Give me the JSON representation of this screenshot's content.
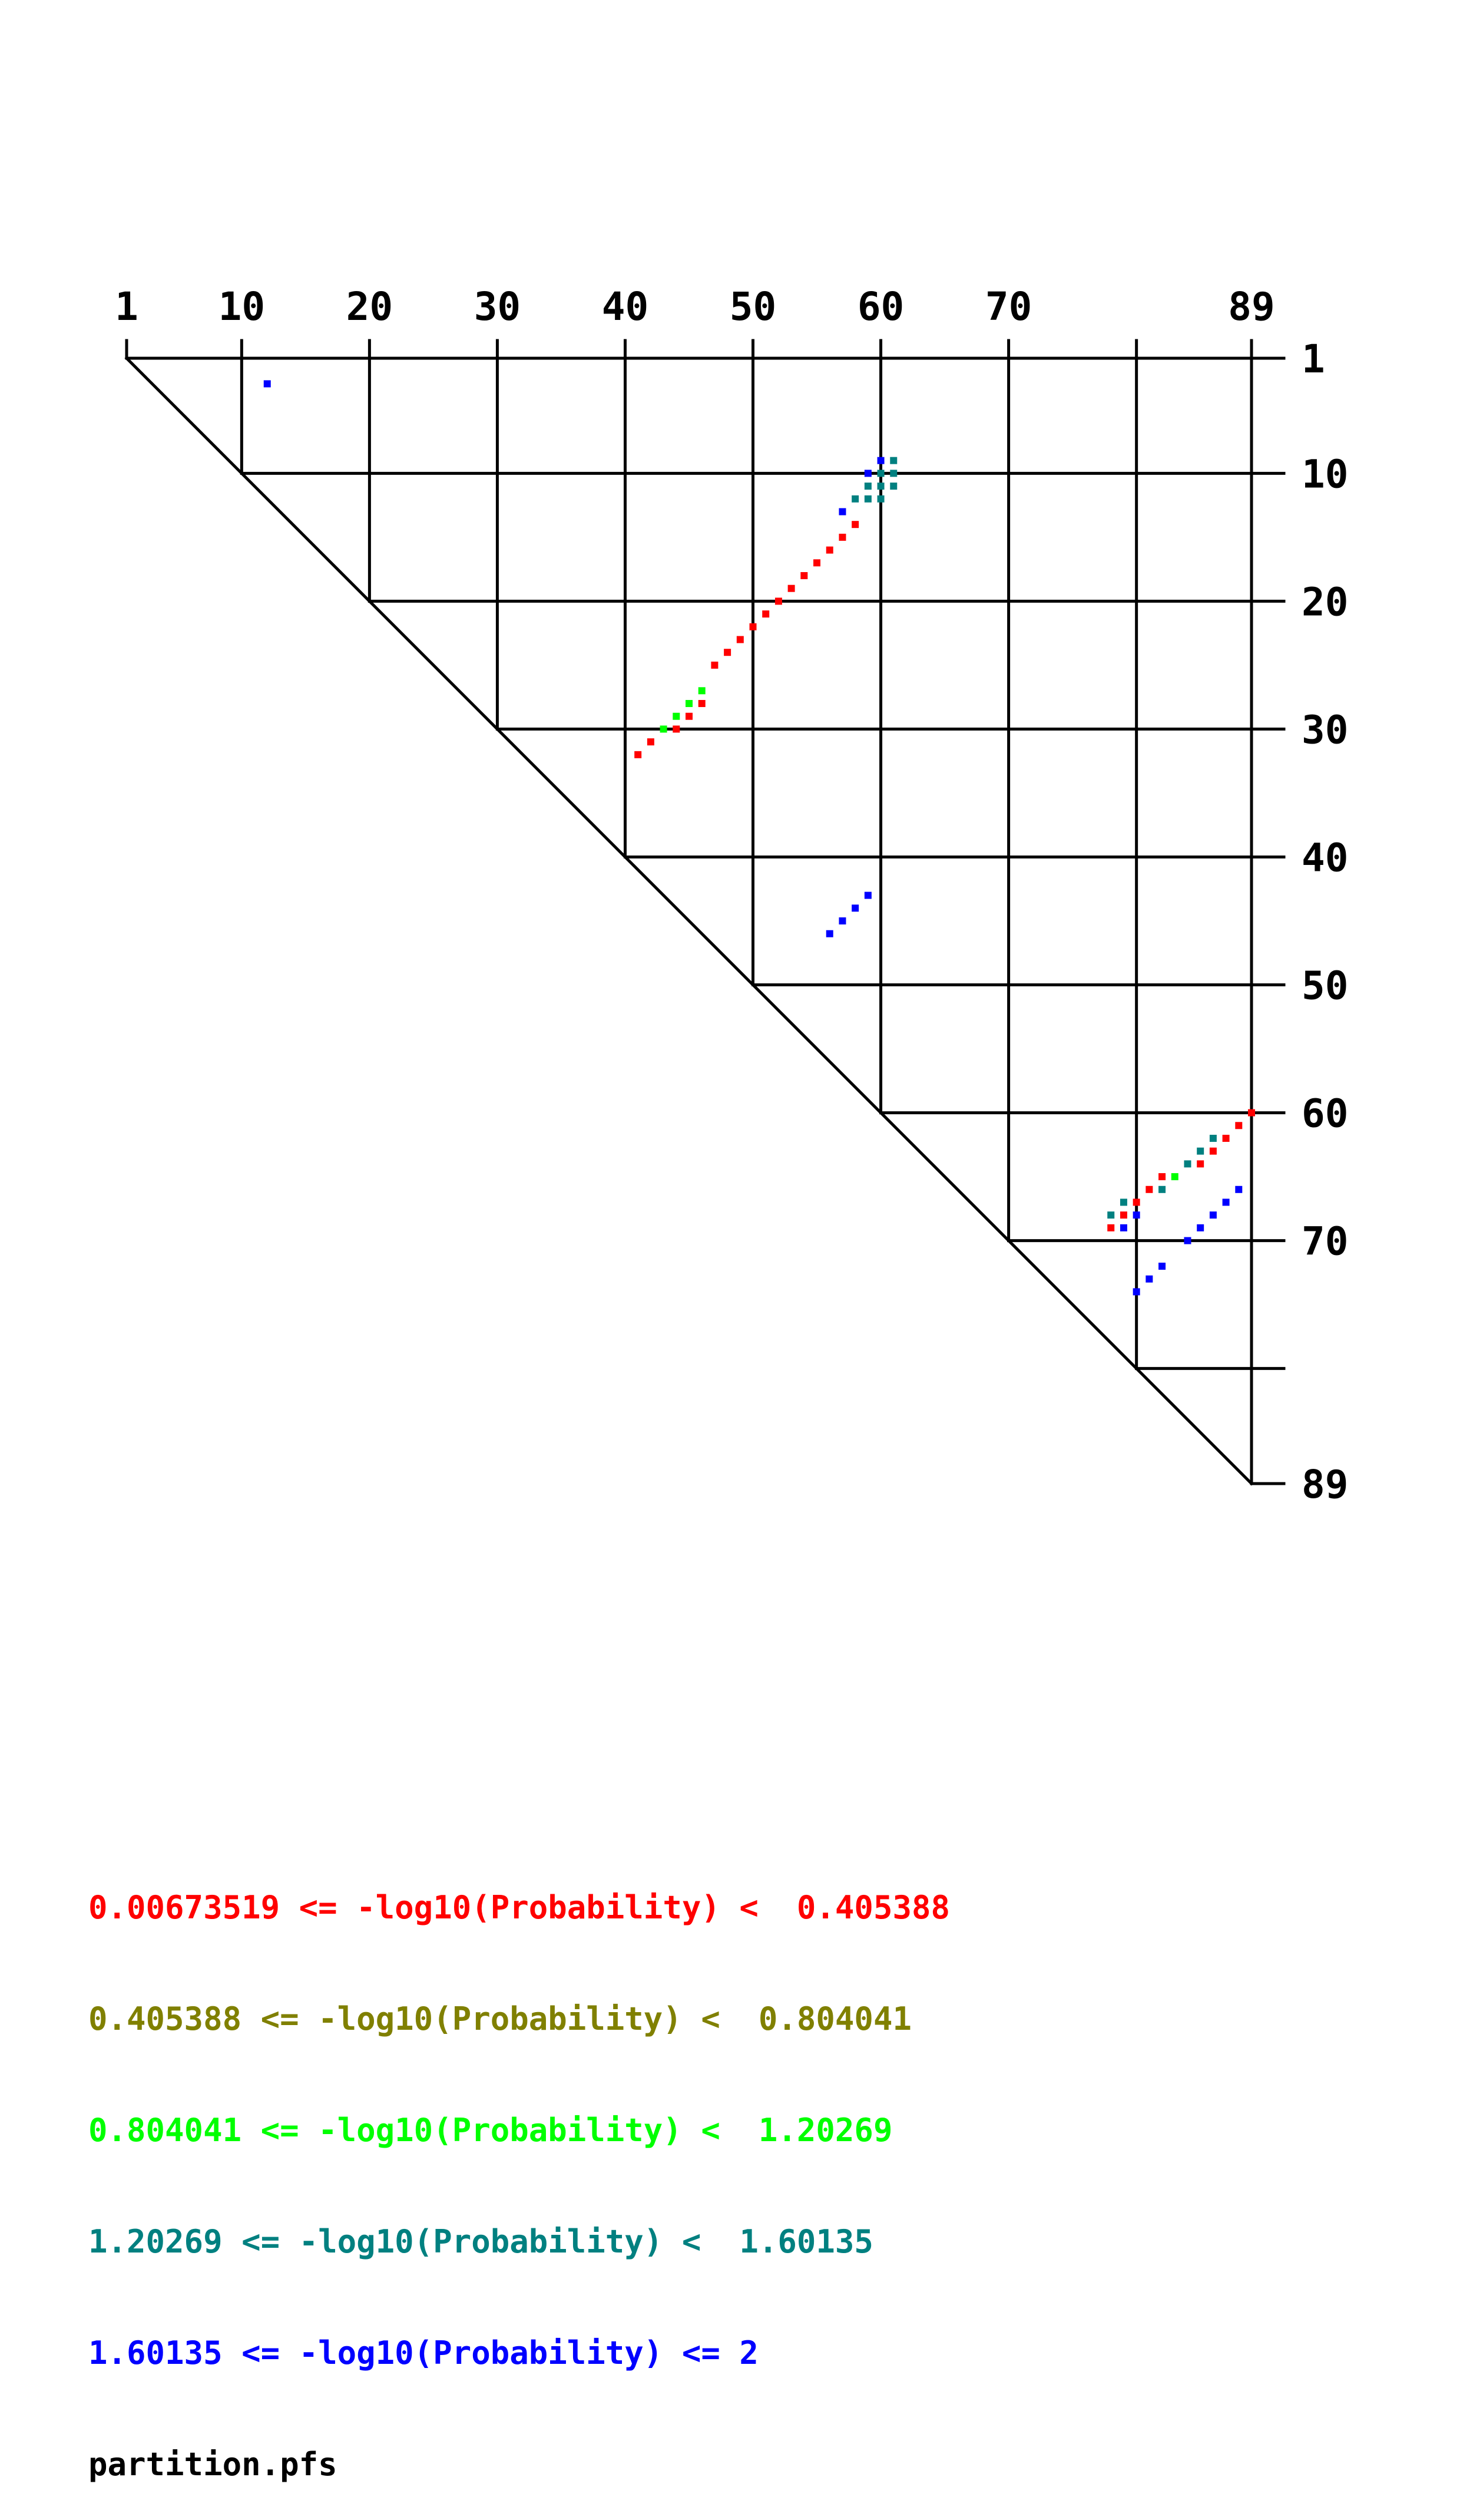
{
  "chart_data": {
    "type": "heatmap",
    "title": "",
    "n": 89,
    "top_tick_labels": [
      "1",
      "10",
      "20",
      "30",
      "40",
      "50",
      "60",
      "70",
      "89"
    ],
    "right_tick_labels": [
      "1",
      "10",
      "20",
      "30",
      "40",
      "50",
      "60",
      "70",
      "89"
    ],
    "grid_positions": [
      1,
      10,
      20,
      30,
      40,
      50,
      60,
      70,
      80,
      89
    ],
    "legend": [
      {
        "text": "0.00673519 <= -log10(Probability) <  0.405388",
        "color": "#ff0000"
      },
      {
        "text": "0.405388 <= -log10(Probability) <  0.804041",
        "color": "#808000"
      },
      {
        "text": "0.804041 <= -log10(Probability) <  1.20269",
        "color": "#00ff00"
      },
      {
        "text": "1.20269 <= -log10(Probability) <  1.60135",
        "color": "#008080"
      },
      {
        "text": "1.60135 <= -log10(Probability) <= 2",
        "color": "#0000ff"
      }
    ],
    "filename": "partition.pfs",
    "bin_colors": [
      "#ff0000",
      "#808000",
      "#00ff00",
      "#008080",
      "#0000ff"
    ],
    "points": [
      {
        "i": 3,
        "j": 12,
        "bin": 4
      },
      {
        "i": 9,
        "j": 60,
        "bin": 4
      },
      {
        "i": 9,
        "j": 61,
        "bin": 3
      },
      {
        "i": 10,
        "j": 59,
        "bin": 4
      },
      {
        "i": 10,
        "j": 60,
        "bin": 3
      },
      {
        "i": 10,
        "j": 61,
        "bin": 3
      },
      {
        "i": 11,
        "j": 59,
        "bin": 3
      },
      {
        "i": 11,
        "j": 60,
        "bin": 3
      },
      {
        "i": 11,
        "j": 61,
        "bin": 3
      },
      {
        "i": 12,
        "j": 58,
        "bin": 3
      },
      {
        "i": 12,
        "j": 59,
        "bin": 3
      },
      {
        "i": 12,
        "j": 60,
        "bin": 3
      },
      {
        "i": 13,
        "j": 57,
        "bin": 4
      },
      {
        "i": 14,
        "j": 58,
        "bin": 0
      },
      {
        "i": 15,
        "j": 57,
        "bin": 0
      },
      {
        "i": 16,
        "j": 56,
        "bin": 0
      },
      {
        "i": 17,
        "j": 55,
        "bin": 0
      },
      {
        "i": 18,
        "j": 54,
        "bin": 0
      },
      {
        "i": 19,
        "j": 53,
        "bin": 0
      },
      {
        "i": 20,
        "j": 52,
        "bin": 0
      },
      {
        "i": 21,
        "j": 51,
        "bin": 0
      },
      {
        "i": 22,
        "j": 50,
        "bin": 0
      },
      {
        "i": 23,
        "j": 49,
        "bin": 0
      },
      {
        "i": 24,
        "j": 48,
        "bin": 0
      },
      {
        "i": 25,
        "j": 47,
        "bin": 0
      },
      {
        "i": 27,
        "j": 46,
        "bin": 2
      },
      {
        "i": 28,
        "j": 45,
        "bin": 2
      },
      {
        "i": 28,
        "j": 46,
        "bin": 0
      },
      {
        "i": 29,
        "j": 44,
        "bin": 2
      },
      {
        "i": 29,
        "j": 45,
        "bin": 0
      },
      {
        "i": 30,
        "j": 43,
        "bin": 2
      },
      {
        "i": 30,
        "j": 44,
        "bin": 0
      },
      {
        "i": 31,
        "j": 42,
        "bin": 0
      },
      {
        "i": 32,
        "j": 41,
        "bin": 0
      },
      {
        "i": 43,
        "j": 59,
        "bin": 4
      },
      {
        "i": 44,
        "j": 58,
        "bin": 4
      },
      {
        "i": 45,
        "j": 57,
        "bin": 4
      },
      {
        "i": 46,
        "j": 56,
        "bin": 4
      },
      {
        "i": 60,
        "j": 89,
        "bin": 0
      },
      {
        "i": 61,
        "j": 88,
        "bin": 0
      },
      {
        "i": 62,
        "j": 86,
        "bin": 3
      },
      {
        "i": 62,
        "j": 87,
        "bin": 0
      },
      {
        "i": 63,
        "j": 85,
        "bin": 3
      },
      {
        "i": 63,
        "j": 86,
        "bin": 0
      },
      {
        "i": 64,
        "j": 84,
        "bin": 3
      },
      {
        "i": 64,
        "j": 85,
        "bin": 0
      },
      {
        "i": 65,
        "j": 82,
        "bin": 0
      },
      {
        "i": 65,
        "j": 83,
        "bin": 2
      },
      {
        "i": 66,
        "j": 81,
        "bin": 0
      },
      {
        "i": 66,
        "j": 82,
        "bin": 3
      },
      {
        "i": 67,
        "j": 79,
        "bin": 3
      },
      {
        "i": 67,
        "j": 80,
        "bin": 0
      },
      {
        "i": 68,
        "j": 78,
        "bin": 3
      },
      {
        "i": 68,
        "j": 79,
        "bin": 0
      },
      {
        "i": 68,
        "j": 80,
        "bin": 4
      },
      {
        "i": 69,
        "j": 78,
        "bin": 0
      },
      {
        "i": 69,
        "j": 79,
        "bin": 4
      },
      {
        "i": 66,
        "j": 88,
        "bin": 4
      },
      {
        "i": 67,
        "j": 87,
        "bin": 4
      },
      {
        "i": 68,
        "j": 86,
        "bin": 4
      },
      {
        "i": 69,
        "j": 85,
        "bin": 4
      },
      {
        "i": 70,
        "j": 84,
        "bin": 4
      },
      {
        "i": 72,
        "j": 82,
        "bin": 4
      },
      {
        "i": 73,
        "j": 81,
        "bin": 4
      },
      {
        "i": 74,
        "j": 80,
        "bin": 4
      }
    ]
  }
}
